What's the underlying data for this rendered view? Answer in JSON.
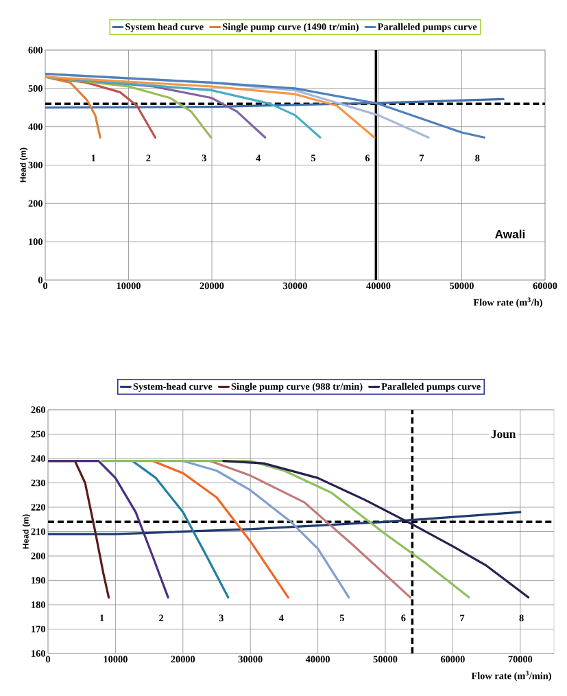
{
  "chart_data": [
    {
      "type": "line",
      "xlabel": "Flow rate (m$^{3}$/h)",
      "ylabel": "Head (m)",
      "xlim": [
        0,
        60000
      ],
      "ylim": [
        0,
        600
      ],
      "xticks": [
        0,
        10000,
        20000,
        30000,
        40000,
        50000,
        60000
      ],
      "yticks": [
        0,
        100,
        200,
        300,
        400,
        500,
        600
      ],
      "grid": true,
      "legend": "top",
      "marker": "none",
      "line_style": "solid",
      "series": [
        {
          "name": "System head curve",
          "color": "#3f6ea8",
          "x": [
            0,
            20000,
            40000,
            55000
          ],
          "values": [
            450,
            452,
            462,
            472
          ]
        },
        {
          "name": "Single pump curve (1490 tr/min)",
          "color": "#d9823b",
          "x": [
            0,
            3000,
            5000,
            6000,
            6600
          ],
          "values": [
            530,
            515,
            470,
            430,
            372
          ]
        },
        {
          "color": "#c0504d",
          "x": [
            0,
            5000,
            9000,
            11000,
            13200
          ],
          "values": [
            530,
            515,
            490,
            455,
            372
          ]
        },
        {
          "color": "#9bbb59",
          "x": [
            0,
            10000,
            15000,
            17500,
            19900
          ],
          "values": [
            530,
            505,
            475,
            440,
            372
          ]
        },
        {
          "color": "#8064a2",
          "x": [
            0,
            13000,
            20000,
            23000,
            26400
          ],
          "values": [
            530,
            505,
            475,
            440,
            372
          ]
        },
        {
          "color": "#4bacc6",
          "x": [
            0,
            20000,
            27000,
            30000,
            33000
          ],
          "values": [
            530,
            495,
            460,
            430,
            372
          ]
        },
        {
          "color": "#f79646",
          "x": [
            0,
            20000,
            30000,
            35000,
            39500
          ],
          "values": [
            530,
            505,
            485,
            455,
            372
          ]
        },
        {
          "color": "#a6b9dc",
          "x": [
            0,
            20000,
            30000,
            40000,
            46000
          ],
          "values": [
            538,
            515,
            495,
            430,
            372
          ]
        },
        {
          "name": "Paralleled pumps curve",
          "color": "#4f81bd",
          "x": [
            0,
            20000,
            30000,
            40000,
            50000,
            52700
          ],
          "values": [
            538,
            515,
            500,
            460,
            385,
            372
          ]
        }
      ],
      "ref_lines": [
        {
          "axis": "y",
          "value": 460,
          "color": "#000000",
          "line_style": "dashed"
        },
        {
          "axis": "x",
          "value": 39700,
          "color": "#000000",
          "line_style": "solid"
        }
      ],
      "annotations": [
        "1",
        "2",
        "3",
        "4",
        "5",
        "6",
        "7",
        "8",
        "Awali"
      ]
    },
    {
      "type": "line",
      "xlabel": "Flow rate (m$^{3}$/min)",
      "ylabel": "Head (m)",
      "xlim": [
        0,
        75000
      ],
      "ylim": [
        160,
        260
      ],
      "xticks": [
        0,
        10000,
        20000,
        30000,
        40000,
        50000,
        60000,
        70000
      ],
      "yticks": [
        160,
        170,
        180,
        190,
        200,
        210,
        220,
        230,
        240,
        250,
        260
      ],
      "grid": true,
      "legend": "top",
      "marker": "none",
      "line_style": "solid",
      "series": [
        {
          "name": "System-head curve",
          "color": "#1f3a6e",
          "x": [
            0,
            10000,
            30000,
            50000,
            70000
          ],
          "values": [
            209,
            209,
            211,
            214,
            218
          ]
        },
        {
          "name": "Single pump curve (988 tr/min)",
          "color": "#5c1a1a",
          "x": [
            0,
            4000,
            5500,
            7000,
            8200,
            9000
          ],
          "values": [
            239,
            239,
            230,
            210,
            193,
            183
          ]
        },
        {
          "color": "#4b2f7f",
          "x": [
            0,
            7500,
            10000,
            13000,
            15500,
            17800
          ],
          "values": [
            239,
            239,
            232,
            218,
            200,
            183
          ]
        },
        {
          "color": "#1f7fa0",
          "x": [
            12500,
            16000,
            20000,
            23500,
            26700
          ],
          "values": [
            239,
            232,
            218,
            200,
            183
          ]
        },
        {
          "color": "#f26522",
          "x": [
            15500,
            20000,
            25000,
            30000,
            35600
          ],
          "values": [
            239,
            234,
            224,
            206,
            183
          ]
        },
        {
          "color": "#7f9fcf",
          "x": [
            20000,
            25000,
            30000,
            36000,
            40000,
            44600
          ],
          "values": [
            239,
            235,
            227,
            214,
            203,
            183
          ]
        },
        {
          "color": "#c07a78",
          "x": [
            24000,
            30000,
            38000,
            45000,
            53700
          ],
          "values": [
            239,
            233,
            222,
            205,
            183
          ]
        },
        {
          "color": "#8fbf5f",
          "x": [
            8000,
            30000,
            35000,
            42000,
            50000,
            56000,
            62400
          ],
          "values": [
            239,
            239,
            235,
            226,
            209,
            197,
            183
          ]
        },
        {
          "name": "Paralleled pumps curve",
          "color": "#2a2050",
          "x": [
            26000,
            32000,
            40000,
            47000,
            54000,
            60000,
            65000,
            71200
          ],
          "values": [
            239,
            238,
            232,
            223,
            213,
            204,
            196,
            183
          ]
        }
      ],
      "ref_lines": [
        {
          "axis": "y",
          "value": 214,
          "color": "#000000",
          "line_style": "dashed"
        },
        {
          "axis": "x",
          "value": 54000,
          "color": "#000000",
          "line_style": "dashed"
        }
      ],
      "annotations": [
        "1",
        "2",
        "3",
        "4",
        "5",
        "6",
        "7",
        "8",
        "Joun"
      ]
    }
  ]
}
